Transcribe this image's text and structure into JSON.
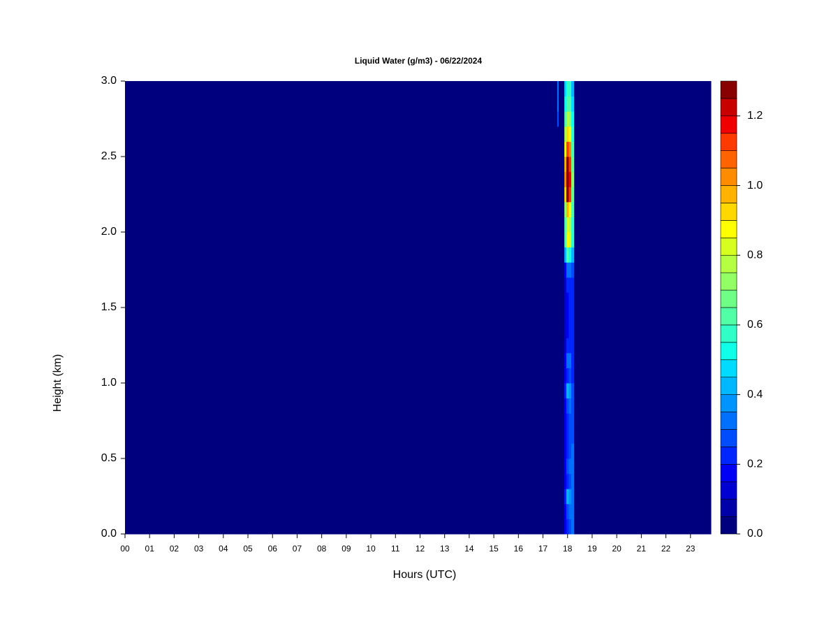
{
  "chart_data": {
    "type": "heatmap",
    "title": "Liquid Water (g/m3) - 06/22/2024",
    "x_label": "Hours (UTC)",
    "y_label": "Height (km)",
    "xlim": [
      0,
      23.83
    ],
    "ylim": [
      0,
      3
    ],
    "xticks": [
      {
        "value": 0,
        "label": "00"
      },
      {
        "value": 1,
        "label": "01"
      },
      {
        "value": 2,
        "label": "02"
      },
      {
        "value": 3,
        "label": "03"
      },
      {
        "value": 4,
        "label": "04"
      },
      {
        "value": 5,
        "label": "05"
      },
      {
        "value": 6,
        "label": "06"
      },
      {
        "value": 7,
        "label": "07"
      },
      {
        "value": 8,
        "label": "08"
      },
      {
        "value": 9,
        "label": "09"
      },
      {
        "value": 10,
        "label": "10"
      },
      {
        "value": 11,
        "label": "11"
      },
      {
        "value": 12,
        "label": "12"
      },
      {
        "value": 13,
        "label": "13"
      },
      {
        "value": 14,
        "label": "14"
      },
      {
        "value": 15,
        "label": "15"
      },
      {
        "value": 16,
        "label": "16"
      },
      {
        "value": 17,
        "label": "17"
      },
      {
        "value": 18,
        "label": "18"
      },
      {
        "value": 19,
        "label": "19"
      },
      {
        "value": 20,
        "label": "20"
      },
      {
        "value": 21,
        "label": "21"
      },
      {
        "value": 22,
        "label": "22"
      },
      {
        "value": 23,
        "label": "23"
      }
    ],
    "yticks": [
      {
        "value": 0,
        "label": "0.0"
      },
      {
        "value": 0.5,
        "label": "0.5"
      },
      {
        "value": 1,
        "label": "1.0"
      },
      {
        "value": 1.5,
        "label": "1.5"
      },
      {
        "value": 2,
        "label": "2.0"
      },
      {
        "value": 2.5,
        "label": "2.5"
      },
      {
        "value": 3,
        "label": "3.0"
      }
    ],
    "x_bins": [
      0,
      17.58,
      17.64,
      17.87,
      17.95,
      18.05,
      18.15,
      18.27,
      23.83
    ],
    "y_bins": [
      0,
      0.1,
      0.2,
      0.3,
      0.4,
      0.5,
      0.6,
      0.7,
      0.8,
      0.9,
      1,
      1.1,
      1.2,
      1.3,
      1.4,
      1.5,
      1.6,
      1.7,
      1.8,
      1.9,
      2,
      2.1,
      2.2,
      2.3,
      2.4,
      2.5,
      2.6,
      2.7,
      2.8,
      2.9,
      3
    ],
    "z": [
      [
        0,
        0,
        0,
        0.15,
        0.2,
        0.25,
        0.3,
        0
      ],
      [
        0,
        0,
        0,
        0.15,
        0.25,
        0.3,
        0.3,
        0
      ],
      [
        0,
        0,
        0,
        0.2,
        0.4,
        0.35,
        0.3,
        0
      ],
      [
        0,
        0,
        0,
        0.15,
        0.2,
        0.25,
        0.3,
        0
      ],
      [
        0,
        0,
        0,
        0.15,
        0.25,
        0.3,
        0.3,
        0
      ],
      [
        0,
        0,
        0,
        0.15,
        0.2,
        0.25,
        0.3,
        0
      ],
      [
        0,
        0,
        0,
        0.15,
        0.2,
        0.25,
        0.25,
        0
      ],
      [
        0,
        0,
        0,
        0.15,
        0.2,
        0.25,
        0.25,
        0
      ],
      [
        0,
        0,
        0,
        0.15,
        0.25,
        0.3,
        0.25,
        0
      ],
      [
        0,
        0,
        0,
        0.2,
        0.4,
        0.35,
        0.25,
        0
      ],
      [
        0,
        0,
        0,
        0.15,
        0.2,
        0.25,
        0.2,
        0
      ],
      [
        0,
        0,
        0,
        0.15,
        0.3,
        0.3,
        0.2,
        0
      ],
      [
        0,
        0,
        0,
        0.1,
        0.2,
        0.2,
        0.2,
        0
      ],
      [
        0,
        0,
        0,
        0.1,
        0.15,
        0.2,
        0.2,
        0
      ],
      [
        0,
        0,
        0,
        0.1,
        0.15,
        0.2,
        0.2,
        0
      ],
      [
        0,
        0,
        0,
        0.1,
        0.15,
        0.2,
        0.2,
        0
      ],
      [
        0,
        0,
        0,
        0.1,
        0.2,
        0.2,
        0.2,
        0
      ],
      [
        0,
        0,
        0,
        0.15,
        0.3,
        0.3,
        0.25,
        0
      ],
      [
        0,
        0,
        0,
        0.4,
        0.6,
        0.5,
        0.4,
        0
      ],
      [
        0,
        0,
        0,
        0.6,
        0.85,
        0.8,
        0.55,
        0
      ],
      [
        0,
        0,
        0,
        0.6,
        0.8,
        0.75,
        0.55,
        0
      ],
      [
        0,
        0,
        0,
        0.7,
        0.95,
        0.85,
        0.6,
        0
      ],
      [
        0,
        0,
        0,
        0.9,
        1.25,
        1.1,
        0.65,
        0
      ],
      [
        0,
        0,
        0,
        1,
        1.3,
        1.15,
        0.7,
        0
      ],
      [
        0,
        0,
        0,
        0.95,
        1.25,
        1.1,
        0.65,
        0
      ],
      [
        0,
        0,
        0,
        0.85,
        1.1,
        1,
        0.6,
        0
      ],
      [
        0,
        0,
        0,
        0.75,
        0.9,
        0.85,
        0.55,
        0
      ],
      [
        0,
        0.25,
        0,
        0.6,
        0.75,
        0.7,
        0.5,
        0
      ],
      [
        0,
        0.3,
        0,
        0.5,
        0.6,
        0.6,
        0.45,
        0
      ],
      [
        0,
        0.3,
        0,
        0.45,
        0.55,
        0.55,
        0.4,
        0
      ]
    ],
    "levels": [
      0,
      0.05,
      0.1,
      0.15,
      0.2,
      0.25,
      0.3,
      0.35,
      0.4,
      0.45,
      0.5,
      0.55,
      0.6,
      0.65,
      0.7,
      0.75,
      0.8,
      0.85,
      0.9,
      0.95,
      1,
      1.05,
      1.1,
      1.15,
      1.2,
      1.25,
      1.3
    ],
    "colors": [
      "#00007f",
      "#0000a8",
      "#0000d0",
      "#0000f5",
      "#0026ff",
      "#004cff",
      "#0070ff",
      "#0094ff",
      "#00b8ff",
      "#00dcff",
      "#10ffe8",
      "#30ffc8",
      "#50ffa6",
      "#70ff86",
      "#92ff64",
      "#b4ff42",
      "#d6ff20",
      "#ffff00",
      "#ffd800",
      "#ffb200",
      "#ff8c00",
      "#ff6400",
      "#ff3a00",
      "#f00000",
      "#c80000",
      "#880000"
    ],
    "colorbar_ticks": [
      {
        "value": 0,
        "label": "0.0"
      },
      {
        "value": 0.2,
        "label": "0.2"
      },
      {
        "value": 0.4,
        "label": "0.4"
      },
      {
        "value": 0.6,
        "label": "0.6"
      },
      {
        "value": 0.8,
        "label": "0.8"
      },
      {
        "value": 1,
        "label": "1.0"
      },
      {
        "value": 1.2,
        "label": "1.2"
      }
    ]
  }
}
